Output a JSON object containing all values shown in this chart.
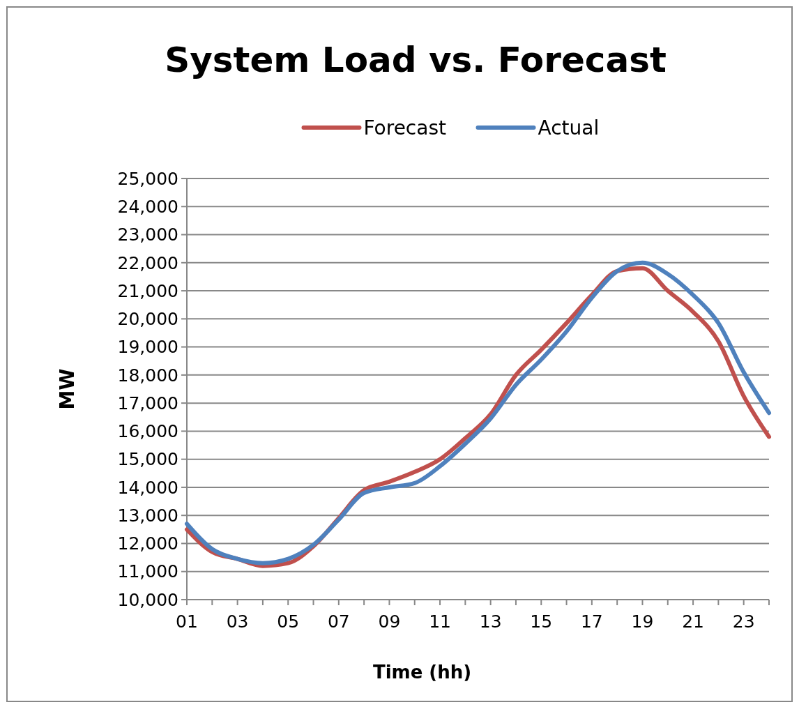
{
  "chart_data": {
    "type": "line",
    "title": "System Load vs. Forecast",
    "xlabel": "Time (hh)",
    "ylabel": "MW",
    "categories": [
      "01",
      null,
      "03",
      null,
      "05",
      null,
      "07",
      null,
      "09",
      null,
      "11",
      null,
      "13",
      null,
      "15",
      null,
      "17",
      null,
      "19",
      null,
      "21",
      null,
      "23",
      null
    ],
    "series": [
      {
        "name": "Forecast",
        "color": "#c0504d",
        "values": [
          12500,
          11700,
          11450,
          11200,
          11300,
          11900,
          12900,
          13900,
          14200,
          14550,
          15000,
          15750,
          16600,
          18000,
          18900,
          19850,
          20850,
          21700,
          21800,
          21000,
          20250,
          19200,
          17250,
          15800
        ]
      },
      {
        "name": "Actual",
        "color": "#4f81bd",
        "values": [
          12700,
          11800,
          11450,
          11300,
          11450,
          11950,
          12850,
          13800,
          14000,
          14150,
          14750,
          15550,
          16450,
          17650,
          18550,
          19550,
          20750,
          21700,
          22000,
          21600,
          20850,
          19850,
          18100,
          16650
        ]
      }
    ],
    "ylim": [
      10000,
      25000
    ],
    "yticks": [
      {
        "value": 10000,
        "label": "10,000"
      },
      {
        "value": 11000,
        "label": "11,000"
      },
      {
        "value": 12000,
        "label": "12,000"
      },
      {
        "value": 13000,
        "label": "13,000"
      },
      {
        "value": 14000,
        "label": "14,000"
      },
      {
        "value": 15000,
        "label": "15,000"
      },
      {
        "value": 16000,
        "label": "16,000"
      },
      {
        "value": 17000,
        "label": "17,000"
      },
      {
        "value": 18000,
        "label": "18,000"
      },
      {
        "value": 19000,
        "label": "19,000"
      },
      {
        "value": 20000,
        "label": "20,000"
      },
      {
        "value": 21000,
        "label": "21,000"
      },
      {
        "value": 22000,
        "label": "22,000"
      },
      {
        "value": 23000,
        "label": "23,000"
      },
      {
        "value": 24000,
        "label": "24,000"
      },
      {
        "value": 25000,
        "label": "25,000"
      }
    ],
    "grid": "y",
    "legend": "top",
    "marker": "none",
    "line_style": "solid"
  }
}
